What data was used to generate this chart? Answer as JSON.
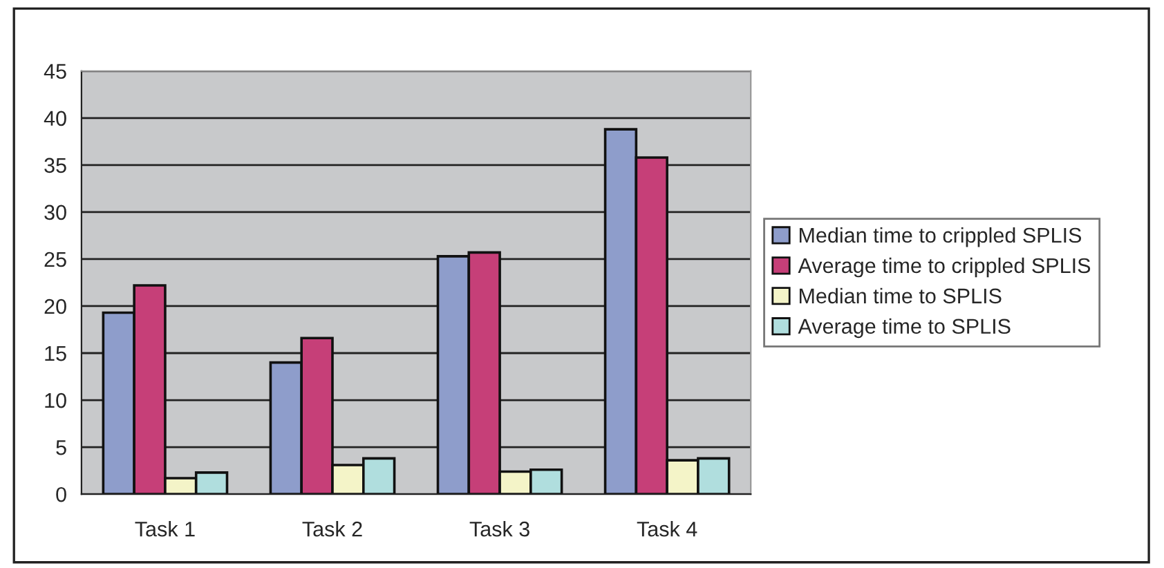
{
  "chart_data": {
    "type": "bar",
    "categories": [
      "Task 1",
      "Task 2",
      "Task 3",
      "Task 4"
    ],
    "series": [
      {
        "name": "Median time to crippled SPLIS",
        "color": "#8e9dcb",
        "values": [
          19.3,
          14.0,
          25.3,
          38.8
        ]
      },
      {
        "name": "Average time to crippled SPLIS",
        "color": "#c63f78",
        "values": [
          22.2,
          16.6,
          25.7,
          35.8
        ]
      },
      {
        "name": "Median time to SPLIS",
        "color": "#f4f4c8",
        "values": [
          1.7,
          3.1,
          2.4,
          3.6
        ]
      },
      {
        "name": "Average time to SPLIS",
        "color": "#b0dede",
        "values": [
          2.3,
          3.8,
          2.6,
          3.8
        ]
      }
    ],
    "ylim": [
      0,
      45
    ],
    "yticks": [
      0,
      5,
      10,
      15,
      20,
      25,
      30,
      35,
      40,
      45
    ],
    "grid": "y",
    "legend": "right"
  }
}
